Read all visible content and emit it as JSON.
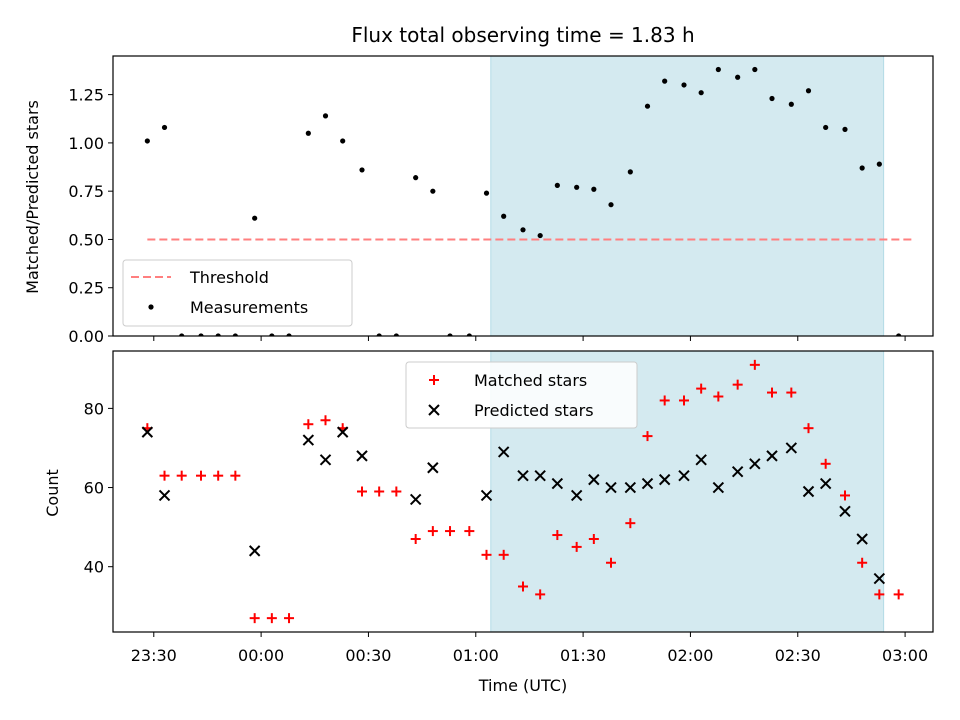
{
  "chart_data": {
    "title": "Flux total observing time = 1.83 h",
    "xlabel": "Time (UTC)",
    "x_tick_labels": [
      "23:30",
      "00:00",
      "00:30",
      "01:00",
      "01:30",
      "02:00",
      "02:30",
      "03:00"
    ],
    "x_tick_values_hours": [
      23.5,
      24.0,
      24.5,
      25.0,
      25.5,
      26.0,
      26.5,
      27.0
    ],
    "xlim_hours": [
      23.31,
      27.13
    ],
    "shaded_region_hours": [
      25.07,
      26.9
    ],
    "shaded_color": "#d4eaf0",
    "panels": [
      {
        "type": "scatter",
        "ylabel": "Matched/Predicted stars",
        "ylim": [
          0,
          1.45
        ],
        "y_ticks": [
          0,
          0.25,
          0.5,
          0.75,
          1.0,
          1.25
        ],
        "y_tick_labels": [
          "0.00",
          "0.25",
          "0.50",
          "0.75",
          "1.00",
          "1.25"
        ],
        "legend_position": "lower-left",
        "threshold": {
          "name": "Threshold",
          "value": 0.5,
          "x_range": [
            23.47,
            27.03
          ],
          "color": "#ff7f7f"
        },
        "series": [
          {
            "name": "Measurements",
            "color": "#000000",
            "x": [
              23.47,
              23.55,
              23.63,
              23.72,
              23.8,
              23.88,
              23.97,
              24.05,
              24.13,
              24.22,
              24.3,
              24.38,
              24.47,
              24.55,
              24.63,
              24.72,
              24.8,
              24.88,
              24.97,
              25.05,
              25.13,
              25.22,
              25.3,
              25.38,
              25.47,
              25.55,
              25.63,
              25.72,
              25.8,
              25.88,
              25.97,
              26.05,
              26.13,
              26.22,
              26.3,
              26.38,
              26.47,
              26.55,
              26.63,
              26.72,
              26.8,
              26.88,
              26.97
            ],
            "y": [
              1.01,
              1.08,
              0.0,
              0.0,
              0.0,
              0.0,
              0.61,
              0.0,
              0.0,
              1.05,
              1.14,
              1.01,
              0.86,
              0.0,
              0.0,
              0.82,
              0.75,
              0.0,
              0.0,
              0.74,
              0.62,
              0.55,
              0.52,
              0.78,
              0.77,
              0.76,
              0.68,
              0.85,
              1.19,
              1.32,
              1.3,
              1.26,
              1.38,
              1.34,
              1.38,
              1.23,
              1.2,
              1.27,
              1.08,
              1.07,
              0.87,
              0.89,
              0.0
            ]
          }
        ]
      },
      {
        "type": "scatter",
        "ylabel": "Count",
        "ylim": [
          23.5,
          94.5
        ],
        "y_ticks": [
          40,
          60,
          80
        ],
        "y_tick_labels": [
          "40",
          "60",
          "80"
        ],
        "legend_position": "upper-center",
        "series": [
          {
            "name": "Matched stars",
            "marker": "plus",
            "color": "#ff0000",
            "x": [
              23.47,
              23.55,
              23.63,
              23.72,
              23.8,
              23.88,
              23.97,
              24.05,
              24.13,
              24.22,
              24.3,
              24.38,
              24.47,
              24.55,
              24.63,
              24.72,
              24.8,
              24.88,
              24.97,
              25.05,
              25.13,
              25.22,
              25.3,
              25.38,
              25.47,
              25.55,
              25.63,
              25.72,
              25.8,
              25.88,
              25.97,
              26.05,
              26.13,
              26.22,
              26.3,
              26.38,
              26.47,
              26.55,
              26.63,
              26.72,
              26.8,
              26.88,
              26.97
            ],
            "y": [
              75,
              63,
              63,
              63,
              63,
              63,
              27,
              27,
              27,
              76,
              77,
              75,
              59,
              59,
              59,
              47,
              49,
              49,
              49,
              43,
              43,
              35,
              33,
              48,
              45,
              47,
              41,
              51,
              73,
              82,
              82,
              85,
              83,
              86,
              91,
              84,
              84,
              75,
              66,
              58,
              41,
              33,
              33
            ]
          },
          {
            "name": "Predicted stars",
            "marker": "x",
            "color": "#000000",
            "x": [
              23.47,
              23.55,
              23.97,
              24.22,
              24.3,
              24.38,
              24.47,
              24.72,
              24.8,
              25.05,
              25.13,
              25.22,
              25.3,
              25.38,
              25.47,
              25.55,
              25.63,
              25.72,
              25.8,
              25.88,
              25.97,
              26.05,
              26.13,
              26.22,
              26.3,
              26.38,
              26.47,
              26.55,
              26.63,
              26.72,
              26.8,
              26.88
            ],
            "y": [
              74,
              58,
              44,
              72,
              67,
              74,
              68,
              57,
              65,
              58,
              69,
              63,
              63,
              61,
              58,
              62,
              60,
              60,
              61,
              62,
              63,
              67,
              60,
              64,
              66,
              68,
              70,
              59,
              61,
              54,
              47,
              37
            ]
          }
        ]
      }
    ]
  }
}
